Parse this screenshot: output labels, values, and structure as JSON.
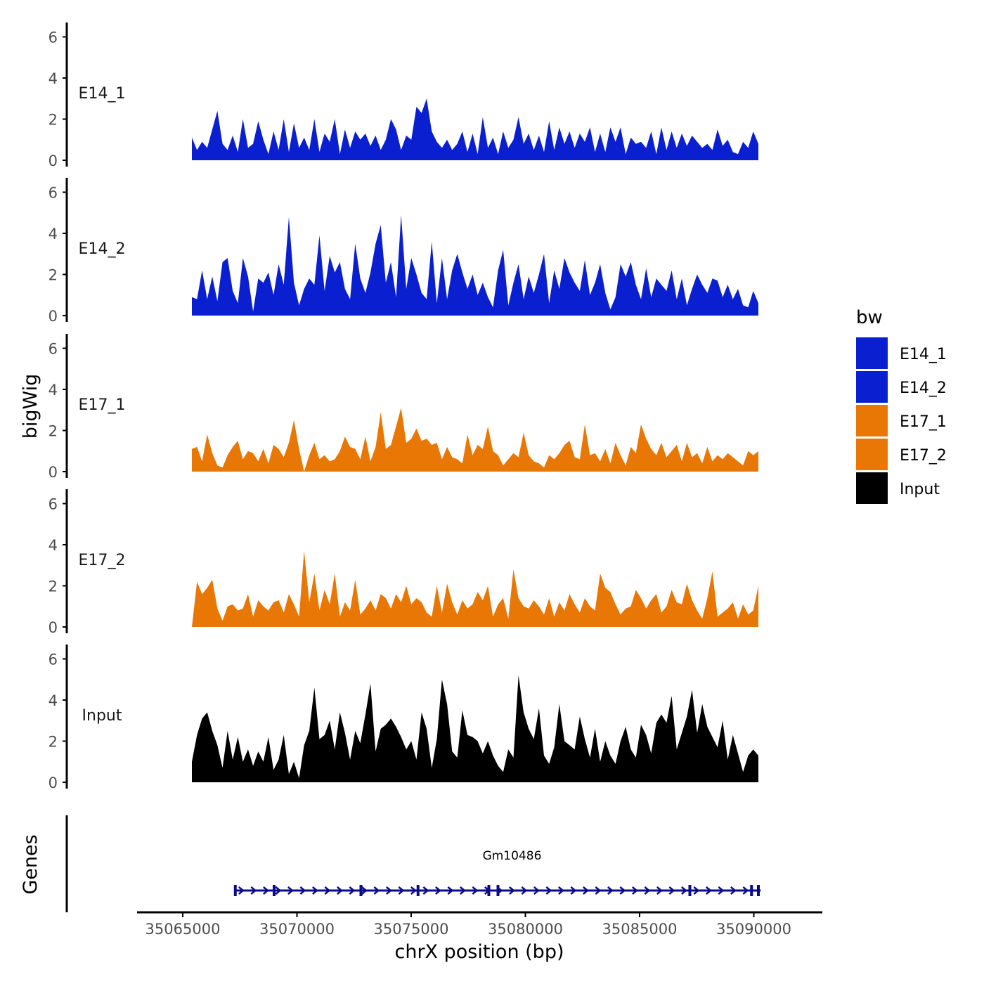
{
  "chart_data": {
    "type": "area",
    "panel_type": "stacked genome-browser coverage tracks",
    "xlabel": "chrX position (bp)",
    "ylabel": "bigWig",
    "gene_panel_label": "Genes",
    "xlim": [
      35063000,
      35093000
    ],
    "x_ticks": [
      {
        "value": 35065000,
        "label": "35065000"
      },
      {
        "value": 35070000,
        "label": "35070000"
      },
      {
        "value": 35075000,
        "label": "35075000"
      },
      {
        "value": 35080000,
        "label": "35080000"
      },
      {
        "value": 35085000,
        "label": "35085000"
      },
      {
        "value": 35090000,
        "label": "35090000"
      }
    ],
    "ylim": [
      0,
      6.7
    ],
    "y_ticks": [
      {
        "value": 0,
        "label": "0"
      },
      {
        "value": 2,
        "label": "2"
      },
      {
        "value": 4,
        "label": "4"
      },
      {
        "value": 6,
        "label": "6"
      }
    ],
    "x_range": [
      35065400,
      35090200
    ],
    "legend": {
      "title": "bw",
      "placement": "right",
      "entries": [
        {
          "label": "E14_1",
          "color": "#0A1FCF"
        },
        {
          "label": "E14_2",
          "color": "#0A1FCF"
        },
        {
          "label": "E17_1",
          "color": "#E87706"
        },
        {
          "label": "E17_2",
          "color": "#E87706"
        },
        {
          "label": "Input",
          "color": "#000000"
        }
      ]
    },
    "series": [
      {
        "name": "E14_1",
        "label": "E14_1",
        "color": "#0A1FCF",
        "values": [
          1.1,
          0.5,
          0.9,
          0.6,
          1.5,
          2.4,
          0.8,
          0.5,
          1.2,
          0.4,
          2.0,
          0.6,
          0.8,
          1.9,
          1.0,
          0.3,
          1.4,
          0.5,
          2.0,
          0.4,
          1.8,
          0.6,
          1.1,
          0.5,
          2.0,
          0.4,
          1.3,
          0.9,
          2.0,
          0.3,
          1.5,
          0.6,
          1.4,
          1.0,
          1.3,
          0.7,
          1.2,
          0.5,
          1.0,
          2.0,
          1.5,
          0.5,
          1.2,
          1.0,
          2.6,
          2.3,
          3.0,
          1.4,
          0.9,
          0.6,
          1.0,
          0.5,
          0.8,
          1.4,
          0.4,
          1.3,
          0.3,
          2.1,
          0.6,
          1.1,
          0.3,
          1.4,
          0.6,
          1.0,
          2.1,
          0.8,
          1.3,
          0.5,
          1.2,
          0.4,
          1.9,
          0.5,
          1.6,
          0.8,
          1.4,
          0.6,
          1.3,
          0.9,
          1.6,
          0.4,
          1.3,
          0.4,
          1.6,
          0.9,
          1.6,
          0.3,
          1.1,
          0.8,
          0.9,
          0.6,
          1.4,
          0.3,
          1.6,
          0.5,
          1.4,
          0.6,
          1.3,
          0.7,
          1.2,
          0.9,
          0.6,
          0.8,
          0.5,
          1.5,
          0.7,
          1.0,
          0.4,
          0.3,
          0.9,
          0.6,
          1.4,
          0.8
        ]
      },
      {
        "name": "E14_2",
        "label": "E14_2",
        "color": "#0A1FCF",
        "values": [
          0.9,
          0.8,
          2.2,
          0.8,
          1.9,
          0.7,
          2.6,
          2.8,
          1.2,
          0.6,
          2.8,
          1.9,
          0.2,
          1.8,
          1.6,
          2.1,
          1.0,
          2.5,
          1.5,
          4.8,
          1.6,
          0.5,
          1.3,
          1.8,
          1.5,
          3.9,
          1.2,
          2.9,
          2.1,
          2.6,
          1.3,
          0.8,
          3.5,
          1.8,
          1.1,
          2.1,
          3.5,
          4.4,
          1.6,
          2.6,
          0.9,
          4.9,
          1.3,
          2.8,
          2.0,
          1.1,
          0.8,
          3.6,
          0.6,
          2.8,
          0.8,
          2.2,
          3.0,
          2.1,
          1.3,
          2.0,
          1.0,
          1.6,
          0.9,
          0.4,
          2.2,
          3.2,
          0.5,
          1.6,
          2.5,
          0.8,
          1.9,
          1.1,
          2.0,
          3.0,
          0.6,
          2.2,
          1.3,
          2.8,
          2.1,
          1.6,
          1.2,
          2.7,
          1.0,
          1.6,
          2.5,
          1.1,
          0.3,
          0.9,
          2.5,
          1.9,
          2.6,
          1.5,
          0.8,
          2.3,
          0.9,
          1.8,
          1.5,
          1.2,
          2.2,
          0.8,
          1.8,
          0.5,
          1.3,
          2.0,
          1.5,
          1.1,
          1.8,
          1.7,
          0.9,
          1.5,
          0.8,
          1.3,
          0.5,
          0.4,
          1.2,
          0.6
        ]
      },
      {
        "name": "E17_1",
        "label": "E17_1",
        "color": "#E87706",
        "values": [
          1.1,
          1.2,
          0.5,
          1.8,
          0.9,
          0.3,
          0.2,
          0.8,
          1.2,
          1.5,
          0.6,
          1.0,
          0.9,
          0.5,
          1.1,
          0.4,
          1.3,
          1.1,
          0.7,
          1.4,
          2.5,
          1.1,
          0.0,
          0.8,
          1.4,
          0.6,
          0.8,
          0.5,
          0.6,
          1.0,
          1.7,
          1.2,
          1.1,
          0.6,
          1.7,
          0.5,
          1.2,
          2.9,
          1.1,
          1.3,
          2.2,
          3.1,
          1.4,
          1.6,
          2.1,
          1.5,
          1.6,
          1.3,
          1.4,
          0.6,
          1.2,
          0.7,
          0.6,
          0.4,
          1.8,
          0.8,
          1.3,
          1.1,
          2.2,
          1.0,
          0.8,
          0.3,
          0.6,
          0.9,
          0.7,
          1.9,
          0.8,
          0.5,
          0.4,
          0.2,
          0.8,
          0.6,
          0.9,
          1.3,
          1.5,
          0.7,
          0.6,
          2.3,
          0.8,
          0.9,
          0.5,
          1.1,
          0.4,
          1.4,
          0.8,
          0.3,
          1.2,
          0.9,
          2.3,
          1.6,
          1.1,
          0.8,
          1.4,
          0.7,
          1.0,
          1.3,
          0.5,
          1.4,
          0.7,
          0.9,
          0.4,
          1.2,
          0.5,
          0.8,
          0.6,
          0.9,
          0.7,
          0.5,
          0.3,
          1.0,
          0.8,
          1.0
        ]
      },
      {
        "name": "E17_2",
        "label": "E17_2",
        "color": "#E87706",
        "values": [
          0.0,
          2.2,
          1.6,
          1.9,
          2.3,
          0.9,
          0.3,
          1.0,
          1.1,
          0.8,
          0.9,
          1.6,
          0.5,
          1.3,
          1.0,
          0.8,
          1.2,
          1.3,
          0.7,
          1.6,
          1.1,
          0.5,
          3.7,
          1.2,
          2.6,
          0.8,
          1.8,
          1.1,
          2.6,
          0.5,
          1.2,
          0.8,
          2.3,
          0.6,
          0.9,
          1.3,
          0.8,
          1.6,
          1.4,
          0.9,
          1.6,
          1.2,
          2.0,
          1.1,
          1.4,
          1.2,
          0.7,
          0.5,
          2.0,
          0.7,
          2.1,
          1.2,
          0.6,
          1.3,
          0.9,
          1.1,
          1.7,
          1.3,
          2.0,
          0.5,
          1.1,
          1.4,
          0.4,
          2.8,
          1.4,
          1.0,
          0.9,
          1.3,
          1.0,
          0.6,
          1.4,
          0.5,
          1.2,
          0.8,
          1.6,
          1.1,
          0.7,
          1.4,
          1.0,
          0.8,
          2.6,
          1.9,
          1.7,
          1.1,
          0.6,
          0.9,
          1.0,
          1.8,
          1.4,
          0.9,
          1.3,
          1.6,
          0.7,
          1.0,
          1.8,
          1.2,
          1.1,
          2.1,
          1.3,
          0.8,
          0.4,
          1.4,
          2.7,
          0.5,
          0.7,
          0.9,
          1.2,
          0.4,
          1.1,
          0.6,
          0.8,
          2.0
        ]
      },
      {
        "name": "Input",
        "label": "Input",
        "color": "#000000",
        "values": [
          1.0,
          2.3,
          3.1,
          3.4,
          2.5,
          1.8,
          0.7,
          2.5,
          1.1,
          2.2,
          1.0,
          1.6,
          0.8,
          1.5,
          1.0,
          2.2,
          0.6,
          1.1,
          2.3,
          0.4,
          1.0,
          0.2,
          1.8,
          2.5,
          4.6,
          2.1,
          2.3,
          3.0,
          1.6,
          3.4,
          2.4,
          1.1,
          2.5,
          1.9,
          3.3,
          4.8,
          1.5,
          2.6,
          2.8,
          3.1,
          2.7,
          2.2,
          1.6,
          2.0,
          1.1,
          3.4,
          2.6,
          0.7,
          2.1,
          5.0,
          3.8,
          1.5,
          1.2,
          3.5,
          2.3,
          2.2,
          2.0,
          1.4,
          2.0,
          1.3,
          0.8,
          0.5,
          1.6,
          1.2,
          5.2,
          3.4,
          2.6,
          2.1,
          3.6,
          1.3,
          0.9,
          1.7,
          3.8,
          2.0,
          1.8,
          1.6,
          3.2,
          2.1,
          1.2,
          2.6,
          1.0,
          2.0,
          1.3,
          0.9,
          2.0,
          2.7,
          1.6,
          1.2,
          2.8,
          2.3,
          1.4,
          2.9,
          3.3,
          2.9,
          4.2,
          1.6,
          2.4,
          3.2,
          4.5,
          2.4,
          3.8,
          2.7,
          2.2,
          1.7,
          3.0,
          1.1,
          2.3,
          1.4,
          0.5,
          1.3,
          1.6,
          1.3
        ]
      }
    ],
    "gene": {
      "name": "Gm10486",
      "start": 35067300,
      "end": 35090300,
      "strand": "+",
      "color": "#0A0A8C",
      "exon_starts": [
        35067300,
        35069000,
        35072800,
        35075300,
        35078400,
        35078800,
        35087200,
        35089900,
        35090200
      ]
    }
  }
}
